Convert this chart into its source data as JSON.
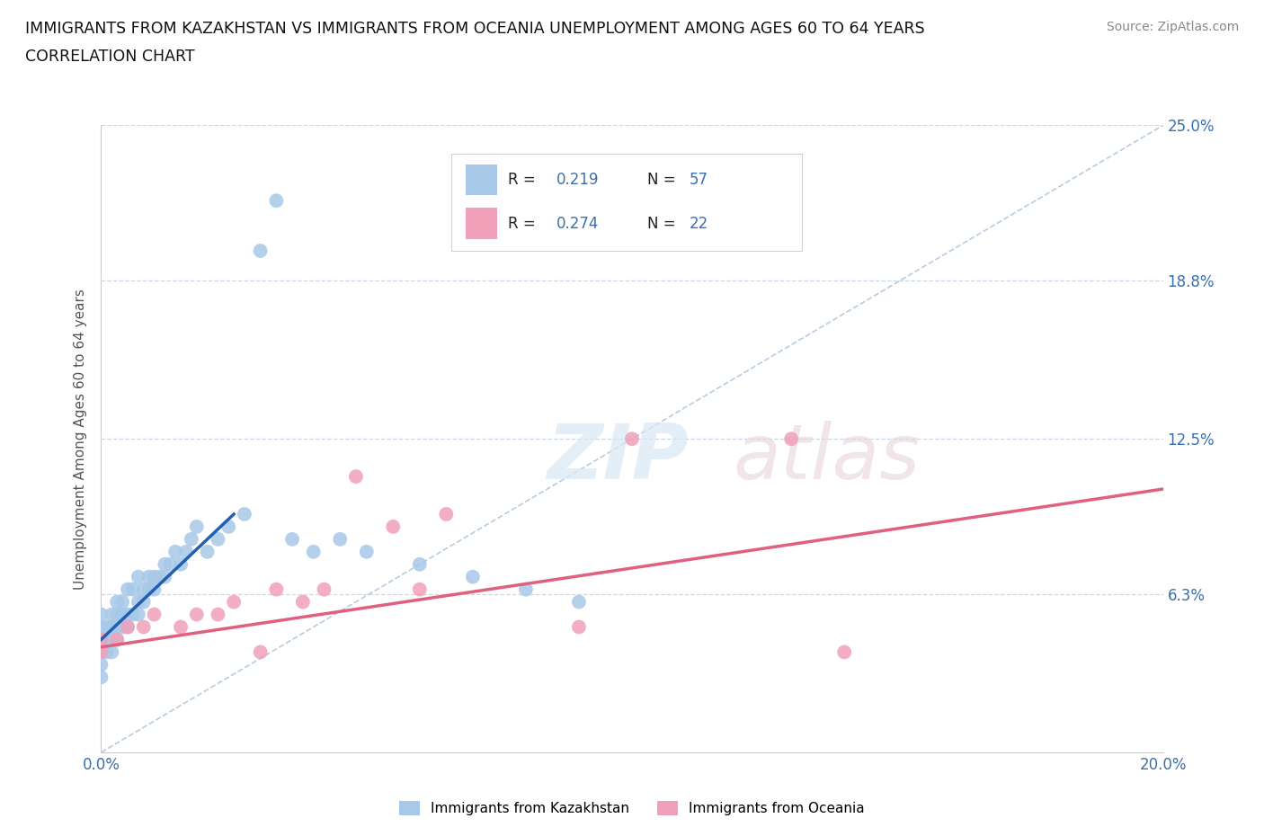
{
  "title_line1": "IMMIGRANTS FROM KAZAKHSTAN VS IMMIGRANTS FROM OCEANIA UNEMPLOYMENT AMONG AGES 60 TO 64 YEARS",
  "title_line2": "CORRELATION CHART",
  "source_text": "Source: ZipAtlas.com",
  "ylabel": "Unemployment Among Ages 60 to 64 years",
  "xlim": [
    0.0,
    0.2
  ],
  "ylim": [
    0.0,
    0.25
  ],
  "ytick_labels_right": [
    "6.3%",
    "12.5%",
    "18.8%",
    "25.0%"
  ],
  "yticks_right": [
    0.063,
    0.125,
    0.188,
    0.25
  ],
  "kazakhstan_color": "#a8c8e8",
  "oceania_color": "#f0a0b8",
  "kazakhstan_line_color": "#2060b0",
  "oceania_line_color": "#e06080",
  "diagonal_color": "#b8cce0",
  "R_kazakhstan": "0.219",
  "N_kazakhstan": "57",
  "R_oceania": "0.274",
  "N_oceania": "22",
  "watermark_ZIP": "ZIP",
  "watermark_atlas": "atlas",
  "legend_label_kaz": "Immigrants from Kazakhstan",
  "legend_label_oce": "Immigrants from Oceania",
  "kazakhstan_x": [
    0.0,
    0.0,
    0.0,
    0.0,
    0.0,
    0.0,
    0.001,
    0.001,
    0.001,
    0.002,
    0.002,
    0.002,
    0.002,
    0.003,
    0.003,
    0.003,
    0.003,
    0.004,
    0.004,
    0.004,
    0.005,
    0.005,
    0.005,
    0.006,
    0.006,
    0.007,
    0.007,
    0.007,
    0.008,
    0.008,
    0.009,
    0.009,
    0.01,
    0.01,
    0.011,
    0.012,
    0.012,
    0.013,
    0.014,
    0.015,
    0.016,
    0.017,
    0.018,
    0.02,
    0.022,
    0.024,
    0.027,
    0.03,
    0.033,
    0.036,
    0.04,
    0.045,
    0.05,
    0.06,
    0.07,
    0.08,
    0.09
  ],
  "kazakhstan_y": [
    0.03,
    0.035,
    0.04,
    0.045,
    0.05,
    0.055,
    0.04,
    0.045,
    0.05,
    0.04,
    0.045,
    0.05,
    0.055,
    0.045,
    0.05,
    0.055,
    0.06,
    0.05,
    0.055,
    0.06,
    0.05,
    0.055,
    0.065,
    0.055,
    0.065,
    0.055,
    0.06,
    0.07,
    0.06,
    0.065,
    0.065,
    0.07,
    0.065,
    0.07,
    0.07,
    0.07,
    0.075,
    0.075,
    0.08,
    0.075,
    0.08,
    0.085,
    0.09,
    0.08,
    0.085,
    0.09,
    0.095,
    0.2,
    0.22,
    0.085,
    0.08,
    0.085,
    0.08,
    0.075,
    0.07,
    0.065,
    0.06
  ],
  "oceania_x": [
    0.0,
    0.0,
    0.003,
    0.005,
    0.008,
    0.01,
    0.015,
    0.018,
    0.022,
    0.025,
    0.03,
    0.033,
    0.038,
    0.042,
    0.048,
    0.055,
    0.06,
    0.065,
    0.09,
    0.1,
    0.13,
    0.14
  ],
  "oceania_y": [
    0.04,
    0.045,
    0.045,
    0.05,
    0.05,
    0.055,
    0.05,
    0.055,
    0.055,
    0.06,
    0.04,
    0.065,
    0.06,
    0.065,
    0.11,
    0.09,
    0.065,
    0.095,
    0.05,
    0.125,
    0.125,
    0.04
  ],
  "kaz_trend_x": [
    0.0,
    0.025
  ],
  "kaz_trend_y_start": 0.045,
  "kaz_trend_y_end": 0.095,
  "oce_trend_x": [
    0.0,
    0.2
  ],
  "oce_trend_y_start": 0.042,
  "oce_trend_y_end": 0.105
}
